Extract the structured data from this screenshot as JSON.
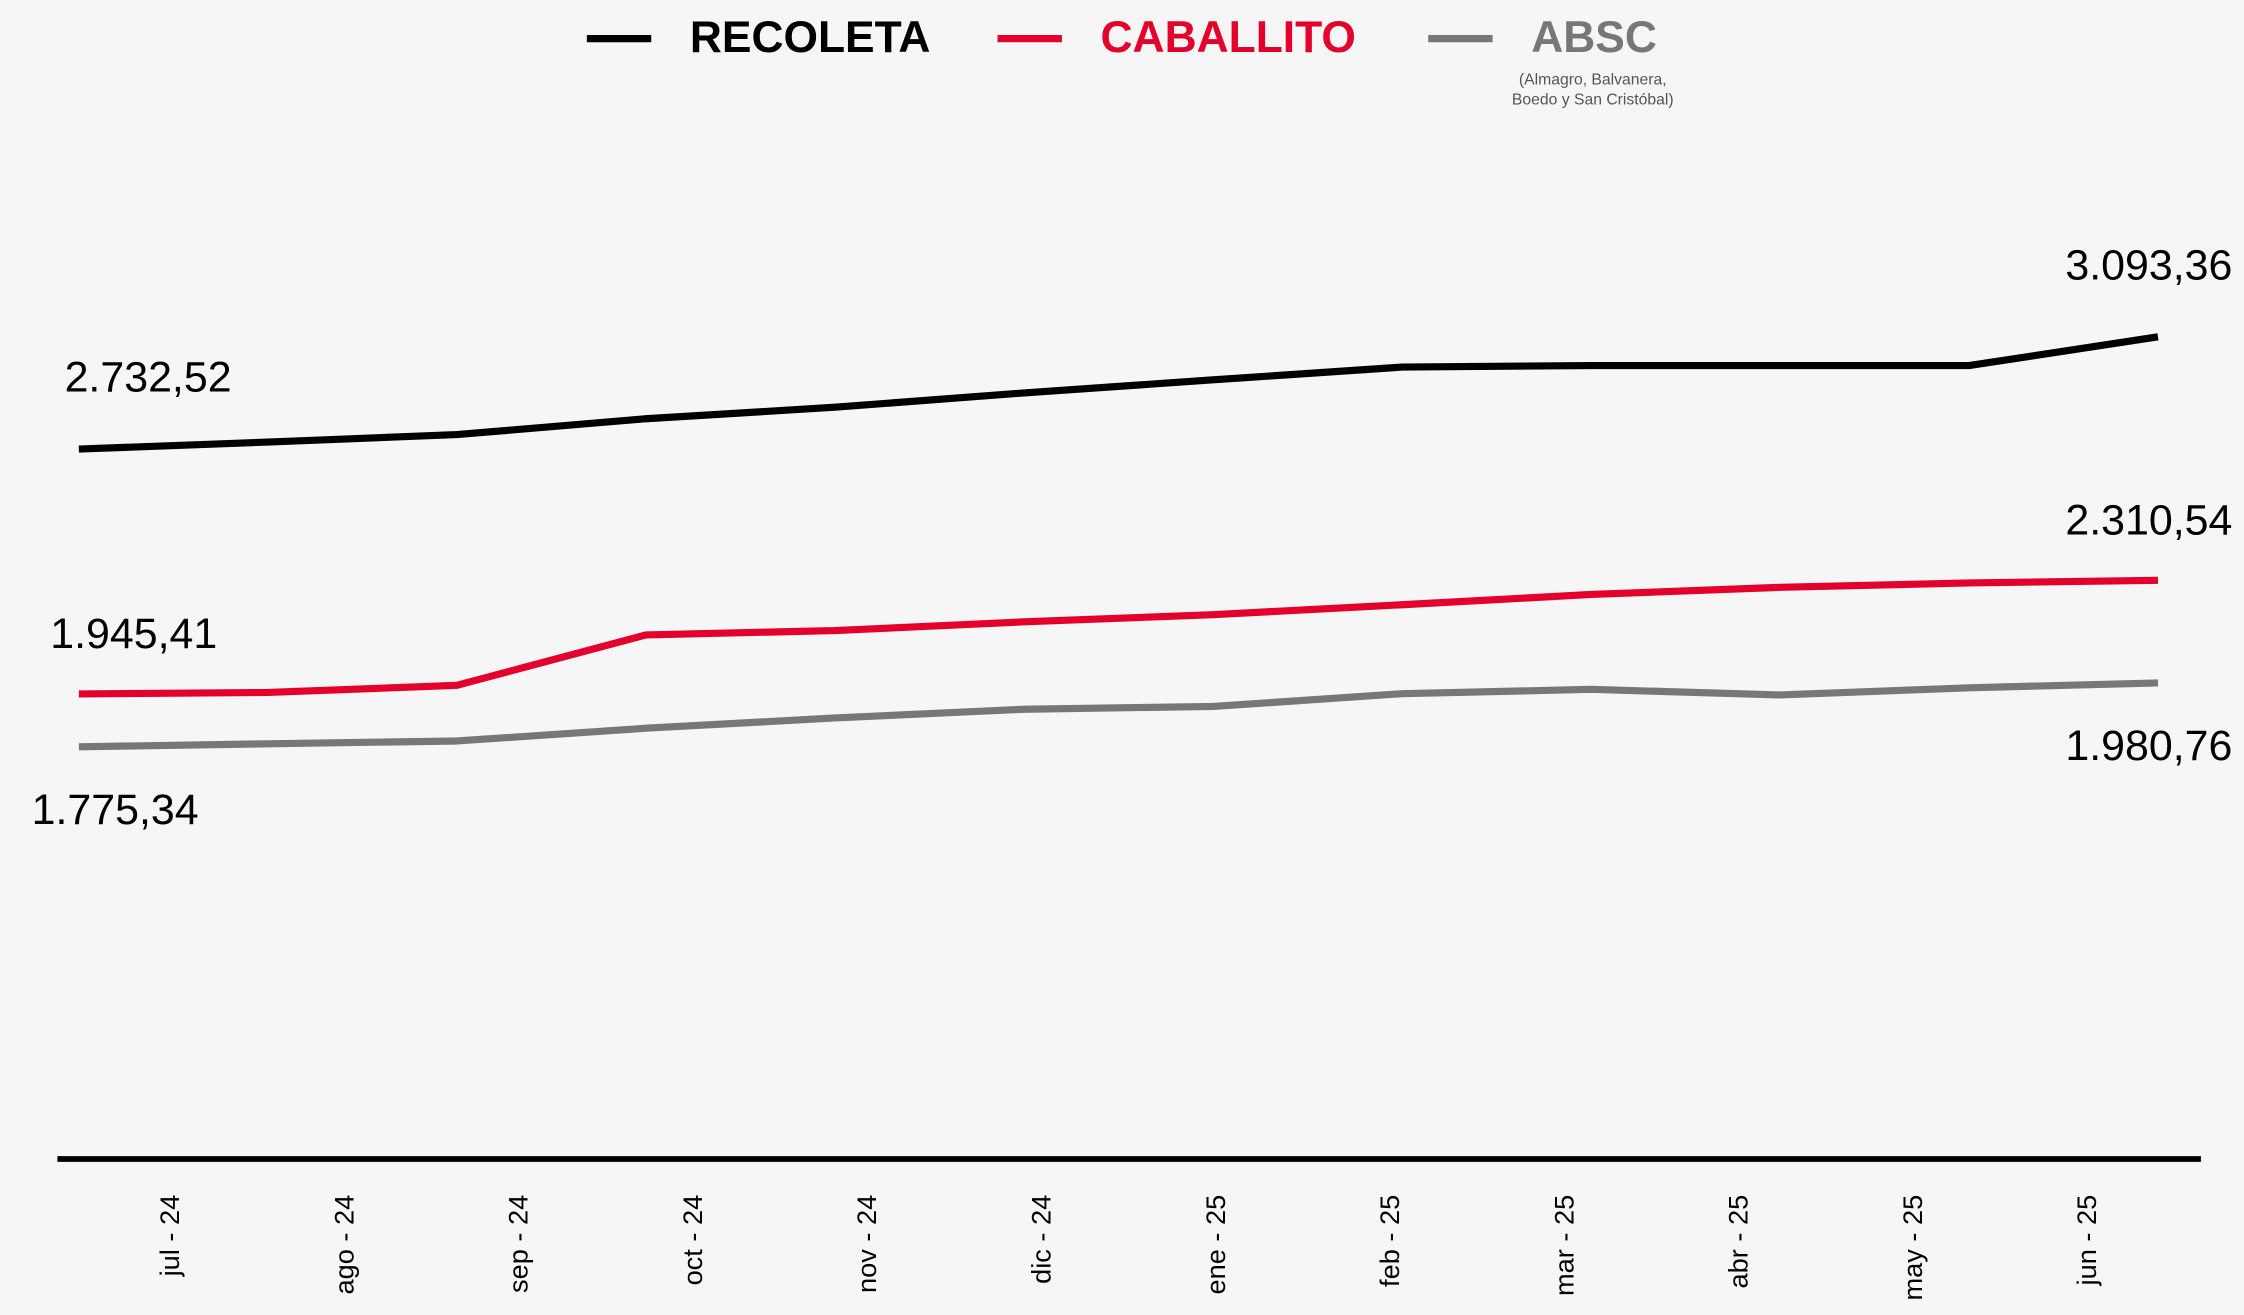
{
  "chart_data": {
    "type": "line",
    "categories": [
      "jul - 24",
      "ago - 24",
      "sep - 24",
      "oct - 24",
      "nov - 24",
      "dic - 24",
      "ene - 25",
      "feb - 25",
      "mar - 25",
      "abr - 25",
      "may - 25",
      "jun - 25"
    ],
    "series": [
      {
        "name": "RECOLETA",
        "color": "#000000",
        "values": [
          2732.52,
          2755,
          2779,
          2830,
          2867,
          2913,
          2955,
          2996,
          3001,
          3001,
          3001,
          3093.36
        ],
        "value_labels": [
          "2.732,52",
          null,
          null,
          null,
          null,
          null,
          null,
          null,
          null,
          null,
          null,
          "3.093,36"
        ]
      },
      {
        "name": "CABALLITO",
        "color": "#e4002b",
        "values": [
          1945.41,
          1950,
          1973,
          2135,
          2149,
          2177,
          2200,
          2232,
          2265,
          2288,
          2302,
          2310.54
        ],
        "value_labels": [
          "1.945,41",
          null,
          null,
          null,
          null,
          null,
          null,
          null,
          null,
          null,
          null,
          "2.310,54"
        ]
      },
      {
        "name": "ABSC",
        "color": "#777777",
        "note": [
          "(Almagro, Balvanera,",
          "Boedo y San Cristóbal)"
        ],
        "values": [
          1775.34,
          1785,
          1794,
          1835,
          1868,
          1896,
          1905,
          1946,
          1960,
          1942,
          1965,
          1980.76
        ],
        "value_labels": [
          "1.775,34",
          null,
          null,
          null,
          null,
          null,
          null,
          null,
          null,
          null,
          null,
          "1.980,76"
        ]
      }
    ],
    "ylim": [
      450,
      3500
    ]
  }
}
